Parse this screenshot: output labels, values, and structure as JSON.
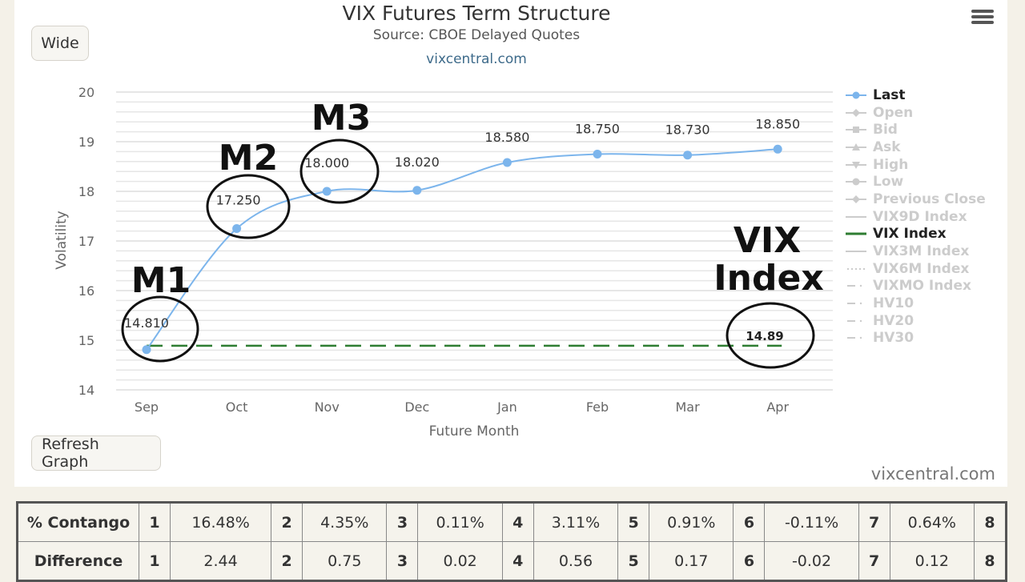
{
  "toolbar": {
    "wide_label": "Wide",
    "refresh_label": "Refresh Graph",
    "menu_icon": "hamburger-menu-icon"
  },
  "header": {
    "title": "VIX Futures Term Structure",
    "subtitle": "Source: CBOE Delayed Quotes",
    "link": "vixcentral.com"
  },
  "credit": "vixcentral.com",
  "annotations": {
    "m1": "M1",
    "m2": "M2",
    "m3": "M3",
    "vix_line1": "VIX",
    "vix_line2": "Index"
  },
  "legend": [
    {
      "label": "Last",
      "active": true,
      "symbol": "circle",
      "color": "#7cb5ec"
    },
    {
      "label": "Open",
      "active": false,
      "symbol": "diamond"
    },
    {
      "label": "Bid",
      "active": false,
      "symbol": "square"
    },
    {
      "label": "Ask",
      "active": false,
      "symbol": "triangle"
    },
    {
      "label": "High",
      "active": false,
      "symbol": "triangle-down"
    },
    {
      "label": "Low",
      "active": false,
      "symbol": "circle"
    },
    {
      "label": "Previous Close",
      "active": false,
      "symbol": "diamond"
    },
    {
      "label": "VIX9D Index",
      "active": false,
      "symbol": "line"
    },
    {
      "label": "VIX Index",
      "active": true,
      "symbol": "line",
      "color": "#2e7d32"
    },
    {
      "label": "VIX3M Index",
      "active": false,
      "symbol": "line"
    },
    {
      "label": "VIX6M Index",
      "active": false,
      "symbol": "dotted"
    },
    {
      "label": "VIXMO Index",
      "active": false,
      "symbol": "dashdot"
    },
    {
      "label": "HV10",
      "active": false,
      "symbol": "dashdot"
    },
    {
      "label": "HV20",
      "active": false,
      "symbol": "dashdot"
    },
    {
      "label": "HV30",
      "active": false,
      "symbol": "dashdot"
    }
  ],
  "chart_data": {
    "type": "line",
    "title": "VIX Futures Term Structure",
    "subtitle": "Source: CBOE Delayed Quotes",
    "xlabel": "Future Month",
    "ylabel": "Volatility",
    "categories": [
      "Sep",
      "Oct",
      "Nov",
      "Dec",
      "Jan",
      "Feb",
      "Mar",
      "Apr"
    ],
    "ylim": [
      14,
      20
    ],
    "yticks": [
      14,
      15,
      16,
      17,
      18,
      19,
      20
    ],
    "grid": true,
    "legend_position": "right",
    "series": [
      {
        "name": "Last",
        "color": "#7cb5ec",
        "values": [
          14.81,
          17.25,
          18.0,
          18.02,
          18.58,
          18.75,
          18.73,
          18.85
        ],
        "labels": [
          "14.810",
          "17.250",
          "18.000",
          "18.020",
          "18.580",
          "18.750",
          "18.730",
          "18.850"
        ]
      },
      {
        "name": "VIX Index",
        "color": "#2e7d32",
        "style": "dashed",
        "values": [
          14.89,
          14.89,
          14.89,
          14.89,
          14.89,
          14.89,
          14.89,
          14.89
        ],
        "label": "14.89"
      }
    ],
    "annotations": [
      "M1",
      "M2",
      "M3",
      "VIX Index"
    ]
  },
  "table": {
    "rows": [
      {
        "header": "% Contango",
        "cells": [
          [
            "1",
            "16.48%"
          ],
          [
            "2",
            "4.35%"
          ],
          [
            "3",
            "0.11%"
          ],
          [
            "4",
            "3.11%"
          ],
          [
            "5",
            "0.91%"
          ],
          [
            "6",
            "-0.11%"
          ],
          [
            "7",
            "0.64%"
          ],
          [
            "8",
            ""
          ]
        ]
      },
      {
        "header": "Difference",
        "cells": [
          [
            "1",
            "2.44"
          ],
          [
            "2",
            "0.75"
          ],
          [
            "3",
            "0.02"
          ],
          [
            "4",
            "0.56"
          ],
          [
            "5",
            "0.17"
          ],
          [
            "6",
            "-0.02"
          ],
          [
            "7",
            "0.12"
          ],
          [
            "8",
            ""
          ]
        ]
      }
    ]
  }
}
